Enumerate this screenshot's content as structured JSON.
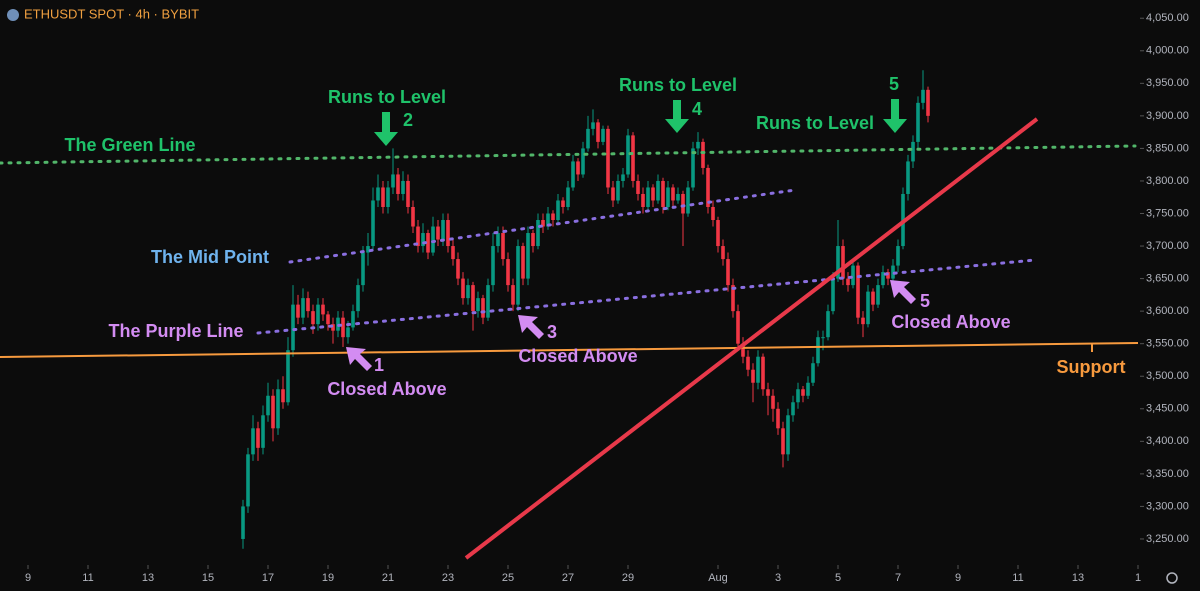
{
  "chart_data": {
    "type": "candlestick",
    "title": "ETHUSDT SPOT · 4h · BYBIT",
    "up_color": "#089981",
    "down_color": "#f23645",
    "xlim": [
      -22.4,
      889.6
    ],
    "xticks": [
      {
        "value": 0,
        "label": "9"
      },
      {
        "value": 48,
        "label": "11"
      },
      {
        "value": 96,
        "label": "13"
      },
      {
        "value": 144,
        "label": "15"
      },
      {
        "value": 192,
        "label": "17"
      },
      {
        "value": 240,
        "label": "19"
      },
      {
        "value": 288,
        "label": "21"
      },
      {
        "value": 336,
        "label": "23"
      },
      {
        "value": 384,
        "label": "25"
      },
      {
        "value": 432,
        "label": "27"
      },
      {
        "value": 480,
        "label": "29"
      },
      {
        "value": 552,
        "label": "Aug"
      },
      {
        "value": 600,
        "label": "3"
      },
      {
        "value": 648,
        "label": "5"
      },
      {
        "value": 696,
        "label": "7"
      },
      {
        "value": 744,
        "label": "9"
      },
      {
        "value": 792,
        "label": "11"
      },
      {
        "value": 840,
        "label": "13"
      },
      {
        "value": 888,
        "label": "1"
      }
    ],
    "ylim": [
      3210,
      4078
    ],
    "yticks": [
      {
        "value": 3250,
        "label": "3,250.00"
      },
      {
        "value": 3300,
        "label": "3,300.00"
      },
      {
        "value": 3350,
        "label": "3,350.00"
      },
      {
        "value": 3400,
        "label": "3,400.00"
      },
      {
        "value": 3450,
        "label": "3,450.00"
      },
      {
        "value": 3500,
        "label": "3,500.00"
      },
      {
        "value": 3550,
        "label": "3,550.00"
      },
      {
        "value": 3600,
        "label": "3,600.00"
      },
      {
        "value": 3650,
        "label": "3,650.00"
      },
      {
        "value": 3700,
        "label": "3,700.00"
      },
      {
        "value": 3750,
        "label": "3,750.00"
      },
      {
        "value": 3800,
        "label": "3,800.00"
      },
      {
        "value": 3850,
        "label": "3,850.00"
      },
      {
        "value": 3900,
        "label": "3,900.00"
      },
      {
        "value": 3950,
        "label": "3,950.00"
      },
      {
        "value": 4000,
        "label": "4,000.00"
      },
      {
        "value": 4050,
        "label": "4,050.00"
      }
    ],
    "annotations": [
      "The Green Line",
      "Runs to Level",
      "2",
      "Runs to Level",
      "4",
      "Runs to Level",
      "5",
      "The Mid Point",
      "The Purple Line",
      "1",
      "Closed Above",
      "3",
      "Closed Above",
      "5",
      "Closed Above",
      "Support"
    ],
    "x": [
      172,
      176,
      180,
      184,
      188,
      192,
      196,
      200,
      204,
      208,
      212,
      216,
      220,
      224,
      228,
      232,
      236,
      240,
      244,
      248,
      252,
      256,
      260,
      264,
      268,
      272,
      276,
      280,
      284,
      288,
      292,
      296,
      300,
      304,
      308,
      312,
      316,
      320,
      324,
      328,
      332,
      336,
      340,
      344,
      348,
      352,
      356,
      360,
      364,
      368,
      372,
      376,
      380,
      384,
      388,
      392,
      396,
      400,
      404,
      408,
      412,
      416,
      420,
      424,
      428,
      432,
      436,
      440,
      444,
      448,
      452,
      456,
      460,
      464,
      468,
      472,
      476,
      480,
      484,
      488,
      492,
      496,
      500,
      504,
      508,
      512,
      516,
      520,
      524,
      528,
      532,
      536,
      540,
      544,
      548,
      552,
      556,
      560,
      564,
      568,
      572,
      576,
      580,
      584,
      588,
      592,
      596,
      600,
      604,
      608,
      612,
      616,
      620,
      624,
      628,
      632,
      636,
      640,
      644,
      648,
      652,
      656,
      660,
      664,
      668,
      672,
      676,
      680,
      684,
      688,
      692,
      696,
      700,
      704,
      708,
      712,
      716,
      720
    ],
    "ohlc": [
      [
        3250,
        3310,
        3235,
        3300
      ],
      [
        3300,
        3390,
        3290,
        3380
      ],
      [
        3380,
        3440,
        3370,
        3420
      ],
      [
        3420,
        3430,
        3370,
        3390
      ],
      [
        3390,
        3455,
        3380,
        3440
      ],
      [
        3440,
        3490,
        3430,
        3470
      ],
      [
        3470,
        3480,
        3400,
        3420
      ],
      [
        3420,
        3495,
        3410,
        3480
      ],
      [
        3480,
        3500,
        3450,
        3460
      ],
      [
        3460,
        3560,
        3455,
        3540
      ],
      [
        3540,
        3640,
        3530,
        3610
      ],
      [
        3610,
        3625,
        3580,
        3590
      ],
      [
        3590,
        3635,
        3580,
        3620
      ],
      [
        3620,
        3630,
        3590,
        3600
      ],
      [
        3600,
        3610,
        3565,
        3580
      ],
      [
        3580,
        3620,
        3570,
        3610
      ],
      [
        3610,
        3620,
        3585,
        3595
      ],
      [
        3595,
        3600,
        3570,
        3580
      ],
      [
        3580,
        3590,
        3550,
        3570
      ],
      [
        3570,
        3600,
        3560,
        3590
      ],
      [
        3590,
        3600,
        3545,
        3560
      ],
      [
        3560,
        3585,
        3550,
        3575
      ],
      [
        3575,
        3610,
        3570,
        3600
      ],
      [
        3600,
        3650,
        3590,
        3640
      ],
      [
        3640,
        3700,
        3630,
        3690
      ],
      [
        3690,
        3720,
        3670,
        3700
      ],
      [
        3700,
        3790,
        3695,
        3770
      ],
      [
        3770,
        3810,
        3760,
        3790
      ],
      [
        3790,
        3800,
        3750,
        3760
      ],
      [
        3760,
        3800,
        3750,
        3790
      ],
      [
        3790,
        3850,
        3780,
        3810
      ],
      [
        3810,
        3820,
        3770,
        3780
      ],
      [
        3780,
        3815,
        3770,
        3800
      ],
      [
        3800,
        3810,
        3750,
        3760
      ],
      [
        3760,
        3770,
        3720,
        3730
      ],
      [
        3730,
        3740,
        3690,
        3700
      ],
      [
        3700,
        3735,
        3690,
        3720
      ],
      [
        3720,
        3725,
        3680,
        3690
      ],
      [
        3690,
        3745,
        3685,
        3730
      ],
      [
        3730,
        3740,
        3700,
        3710
      ],
      [
        3710,
        3750,
        3700,
        3740
      ],
      [
        3740,
        3750,
        3690,
        3700
      ],
      [
        3700,
        3710,
        3670,
        3680
      ],
      [
        3680,
        3690,
        3640,
        3650
      ],
      [
        3650,
        3660,
        3610,
        3620
      ],
      [
        3620,
        3650,
        3610,
        3640
      ],
      [
        3640,
        3645,
        3570,
        3600
      ],
      [
        3600,
        3630,
        3590,
        3620
      ],
      [
        3620,
        3625,
        3580,
        3590
      ],
      [
        3590,
        3650,
        3585,
        3640
      ],
      [
        3640,
        3720,
        3630,
        3700
      ],
      [
        3700,
        3730,
        3690,
        3720
      ],
      [
        3720,
        3730,
        3670,
        3680
      ],
      [
        3680,
        3690,
        3630,
        3640
      ],
      [
        3640,
        3650,
        3600,
        3610
      ],
      [
        3610,
        3710,
        3600,
        3700
      ],
      [
        3700,
        3705,
        3640,
        3650
      ],
      [
        3650,
        3730,
        3640,
        3720
      ],
      [
        3720,
        3725,
        3690,
        3700
      ],
      [
        3700,
        3750,
        3695,
        3740
      ],
      [
        3740,
        3750,
        3720,
        3730
      ],
      [
        3730,
        3760,
        3725,
        3750
      ],
      [
        3750,
        3755,
        3730,
        3740
      ],
      [
        3740,
        3780,
        3735,
        3770
      ],
      [
        3770,
        3775,
        3750,
        3760
      ],
      [
        3760,
        3800,
        3755,
        3790
      ],
      [
        3790,
        3840,
        3785,
        3830
      ],
      [
        3830,
        3835,
        3800,
        3810
      ],
      [
        3810,
        3860,
        3805,
        3850
      ],
      [
        3850,
        3900,
        3845,
        3880
      ],
      [
        3880,
        3910,
        3870,
        3890
      ],
      [
        3890,
        3895,
        3850,
        3860
      ],
      [
        3860,
        3885,
        3855,
        3880
      ],
      [
        3880,
        3885,
        3780,
        3790
      ],
      [
        3790,
        3800,
        3760,
        3770
      ],
      [
        3770,
        3810,
        3765,
        3800
      ],
      [
        3800,
        3820,
        3790,
        3810
      ],
      [
        3810,
        3880,
        3805,
        3870
      ],
      [
        3870,
        3875,
        3790,
        3800
      ],
      [
        3800,
        3810,
        3770,
        3780
      ],
      [
        3780,
        3790,
        3750,
        3760
      ],
      [
        3760,
        3800,
        3755,
        3790
      ],
      [
        3790,
        3795,
        3760,
        3770
      ],
      [
        3770,
        3810,
        3765,
        3800
      ],
      [
        3800,
        3805,
        3750,
        3760
      ],
      [
        3760,
        3800,
        3755,
        3790
      ],
      [
        3790,
        3795,
        3760,
        3770
      ],
      [
        3770,
        3790,
        3765,
        3780
      ],
      [
        3780,
        3785,
        3700,
        3750
      ],
      [
        3750,
        3800,
        3745,
        3790
      ],
      [
        3790,
        3860,
        3785,
        3850
      ],
      [
        3850,
        3875,
        3840,
        3860
      ],
      [
        3860,
        3865,
        3810,
        3820
      ],
      [
        3820,
        3825,
        3750,
        3760
      ],
      [
        3760,
        3770,
        3730,
        3740
      ],
      [
        3740,
        3745,
        3690,
        3700
      ],
      [
        3700,
        3710,
        3670,
        3680
      ],
      [
        3680,
        3690,
        3630,
        3640
      ],
      [
        3640,
        3650,
        3590,
        3600
      ],
      [
        3600,
        3610,
        3540,
        3550
      ],
      [
        3550,
        3560,
        3520,
        3530
      ],
      [
        3530,
        3540,
        3500,
        3510
      ],
      [
        3510,
        3520,
        3460,
        3490
      ],
      [
        3490,
        3540,
        3480,
        3530
      ],
      [
        3530,
        3535,
        3470,
        3480
      ],
      [
        3480,
        3490,
        3440,
        3470
      ],
      [
        3470,
        3480,
        3430,
        3450
      ],
      [
        3450,
        3460,
        3410,
        3420
      ],
      [
        3420,
        3430,
        3360,
        3380
      ],
      [
        3380,
        3450,
        3370,
        3440
      ],
      [
        3440,
        3470,
        3430,
        3460
      ],
      [
        3460,
        3490,
        3450,
        3480
      ],
      [
        3480,
        3485,
        3460,
        3470
      ],
      [
        3470,
        3500,
        3465,
        3490
      ],
      [
        3490,
        3530,
        3485,
        3520
      ],
      [
        3520,
        3570,
        3515,
        3560
      ],
      [
        3560,
        3570,
        3540,
        3560
      ],
      [
        3560,
        3610,
        3555,
        3600
      ],
      [
        3600,
        3660,
        3595,
        3650
      ],
      [
        3650,
        3740,
        3645,
        3700
      ],
      [
        3700,
        3710,
        3640,
        3650
      ],
      [
        3650,
        3660,
        3630,
        3640
      ],
      [
        3640,
        3680,
        3635,
        3670
      ],
      [
        3670,
        3675,
        3580,
        3590
      ],
      [
        3590,
        3600,
        3560,
        3580
      ],
      [
        3580,
        3640,
        3575,
        3630
      ],
      [
        3630,
        3635,
        3600,
        3610
      ],
      [
        3610,
        3650,
        3605,
        3640
      ],
      [
        3640,
        3670,
        3635,
        3660
      ],
      [
        3660,
        3665,
        3640,
        3650
      ],
      [
        3650,
        3680,
        3645,
        3670
      ],
      [
        3670,
        3710,
        3660,
        3700
      ],
      [
        3700,
        3790,
        3695,
        3780
      ],
      [
        3780,
        3840,
        3770,
        3830
      ],
      [
        3830,
        3870,
        3820,
        3860
      ],
      [
        3860,
        3930,
        3850,
        3920
      ],
      [
        3920,
        3970,
        3910,
        3940
      ],
      [
        3940,
        3945,
        3890,
        3900
      ]
    ]
  }
}
